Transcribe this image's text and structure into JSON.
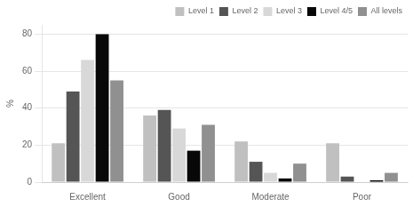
{
  "chart_data": {
    "type": "bar",
    "categories": [
      "Excellent",
      "Good",
      "Moderate",
      "Poor"
    ],
    "series": [
      {
        "name": "Level 1",
        "color": "#c0c0c0",
        "values": [
          21,
          36,
          22,
          21
        ]
      },
      {
        "name": "Level 2",
        "color": "#555555",
        "values": [
          49,
          39,
          11,
          3
        ]
      },
      {
        "name": "Level 3",
        "color": "#d8d8d8",
        "values": [
          66,
          29,
          5,
          0
        ]
      },
      {
        "name": "Level 4/5",
        "color": "#080808",
        "values": [
          80,
          17,
          2,
          1
        ]
      },
      {
        "name": "All levels",
        "color": "#909090",
        "values": [
          55,
          31,
          10,
          5
        ]
      }
    ],
    "ylabel": "%",
    "ylim": [
      0,
      85
    ],
    "yticks": [
      0,
      20,
      40,
      60,
      80
    ],
    "grid": true,
    "legend": "upper right"
  }
}
